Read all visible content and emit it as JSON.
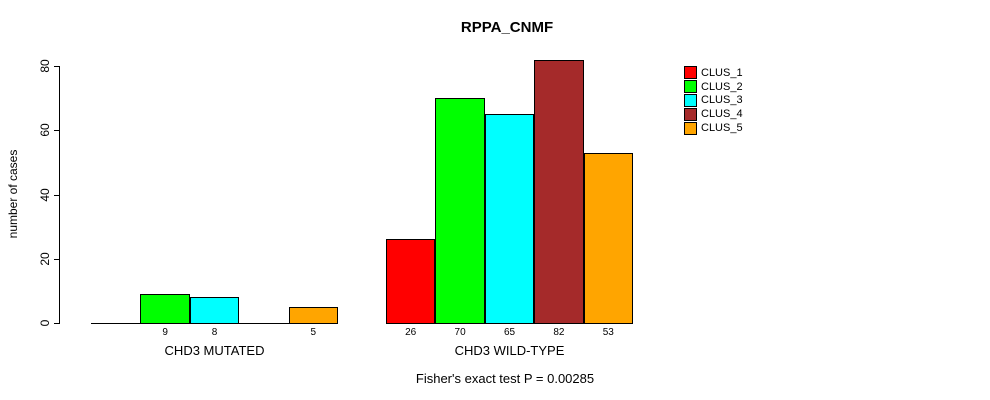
{
  "chart_data": {
    "type": "bar",
    "title": "RPPA_CNMF",
    "ylabel": "number of cases",
    "xlabel": "",
    "ylim": [
      0,
      80
    ],
    "yticks": [
      0,
      20,
      40,
      60,
      80
    ],
    "grid": false,
    "legend_position": "right",
    "categories": [
      "CHD3 MUTATED",
      "CHD3 WILD-TYPE"
    ],
    "series": [
      {
        "name": "CLUS_1",
        "color": "#FF0000",
        "values": [
          0,
          26
        ]
      },
      {
        "name": "CLUS_2",
        "color": "#00FF00",
        "values": [
          9,
          70
        ]
      },
      {
        "name": "CLUS_3",
        "color": "#00FFFF",
        "values": [
          8,
          65
        ]
      },
      {
        "name": "CLUS_4",
        "color": "#A52A2A",
        "values": [
          0,
          82
        ]
      },
      {
        "name": "CLUS_5",
        "color": "#FFA500",
        "values": [
          5,
          53
        ]
      }
    ],
    "value_labels": [
      [
        "",
        "9",
        "8",
        "",
        "5"
      ],
      [
        "26",
        "70",
        "65",
        "82",
        "53"
      ]
    ],
    "annotation": "Fisher's exact test P = 0.00285",
    "axis_color": "#000000",
    "text_color": "#000000",
    "background_color": "#FFFFFF"
  }
}
